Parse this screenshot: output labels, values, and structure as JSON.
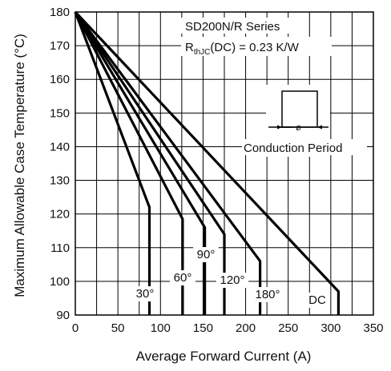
{
  "chart_data": {
    "type": "line",
    "title": "",
    "xlabel": "Average Forward Current (A)",
    "ylabel": "Maximum Allowable Case Temperature (°C)",
    "xlim": [
      0,
      350
    ],
    "ylim": [
      90,
      180
    ],
    "xticks": [
      "0",
      "50",
      "100",
      "150",
      "200",
      "250",
      "300",
      "350"
    ],
    "yticks": [
      "90",
      "100",
      "110",
      "120",
      "130",
      "140",
      "150",
      "160",
      "170",
      "180"
    ],
    "grid": true,
    "annotations": {
      "series_name": "SD200N/R Series",
      "rth_prefix": "R",
      "rth_subscript": "thJC",
      "rth_suffix": "(DC) = 0.23 K/W",
      "conduction_label": "Conduction Period",
      "phi_label": "ø"
    },
    "series": [
      {
        "label": "30°",
        "x": [
          0,
          87,
          87
        ],
        "y": [
          180,
          122,
          90
        ]
      },
      {
        "label": "60°",
        "x": [
          0,
          126,
          126
        ],
        "y": [
          180,
          118.5,
          90
        ]
      },
      {
        "label": "90°",
        "x": [
          0,
          152,
          152
        ],
        "y": [
          180,
          116,
          90
        ]
      },
      {
        "label": "120°",
        "x": [
          0,
          175,
          175
        ],
        "y": [
          180,
          114,
          90
        ]
      },
      {
        "label": "180°",
        "x": [
          0,
          217,
          217
        ],
        "y": [
          180,
          106,
          90
        ]
      },
      {
        "label": "DC",
        "x": [
          0,
          309,
          309
        ],
        "y": [
          180,
          97,
          90
        ]
      }
    ]
  }
}
